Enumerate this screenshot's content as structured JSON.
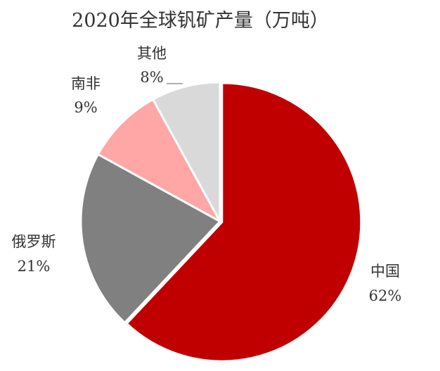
{
  "chart_data": {
    "type": "pie",
    "title": "2020年全球钒矿产量（万吨）",
    "slices": [
      {
        "name": "中国",
        "value": 62,
        "label": "62%",
        "color": "#c00000"
      },
      {
        "name": "俄罗斯",
        "value": 21,
        "label": "21%",
        "color": "#808080"
      },
      {
        "name": "南非",
        "value": 9,
        "label": "9%",
        "color": "#ffa6a6"
      },
      {
        "name": "其他",
        "value": 8,
        "label": "8%",
        "color": "#d9d9d9"
      }
    ],
    "start_angle_deg": 0,
    "direction": "clockwise",
    "legend": "none"
  }
}
